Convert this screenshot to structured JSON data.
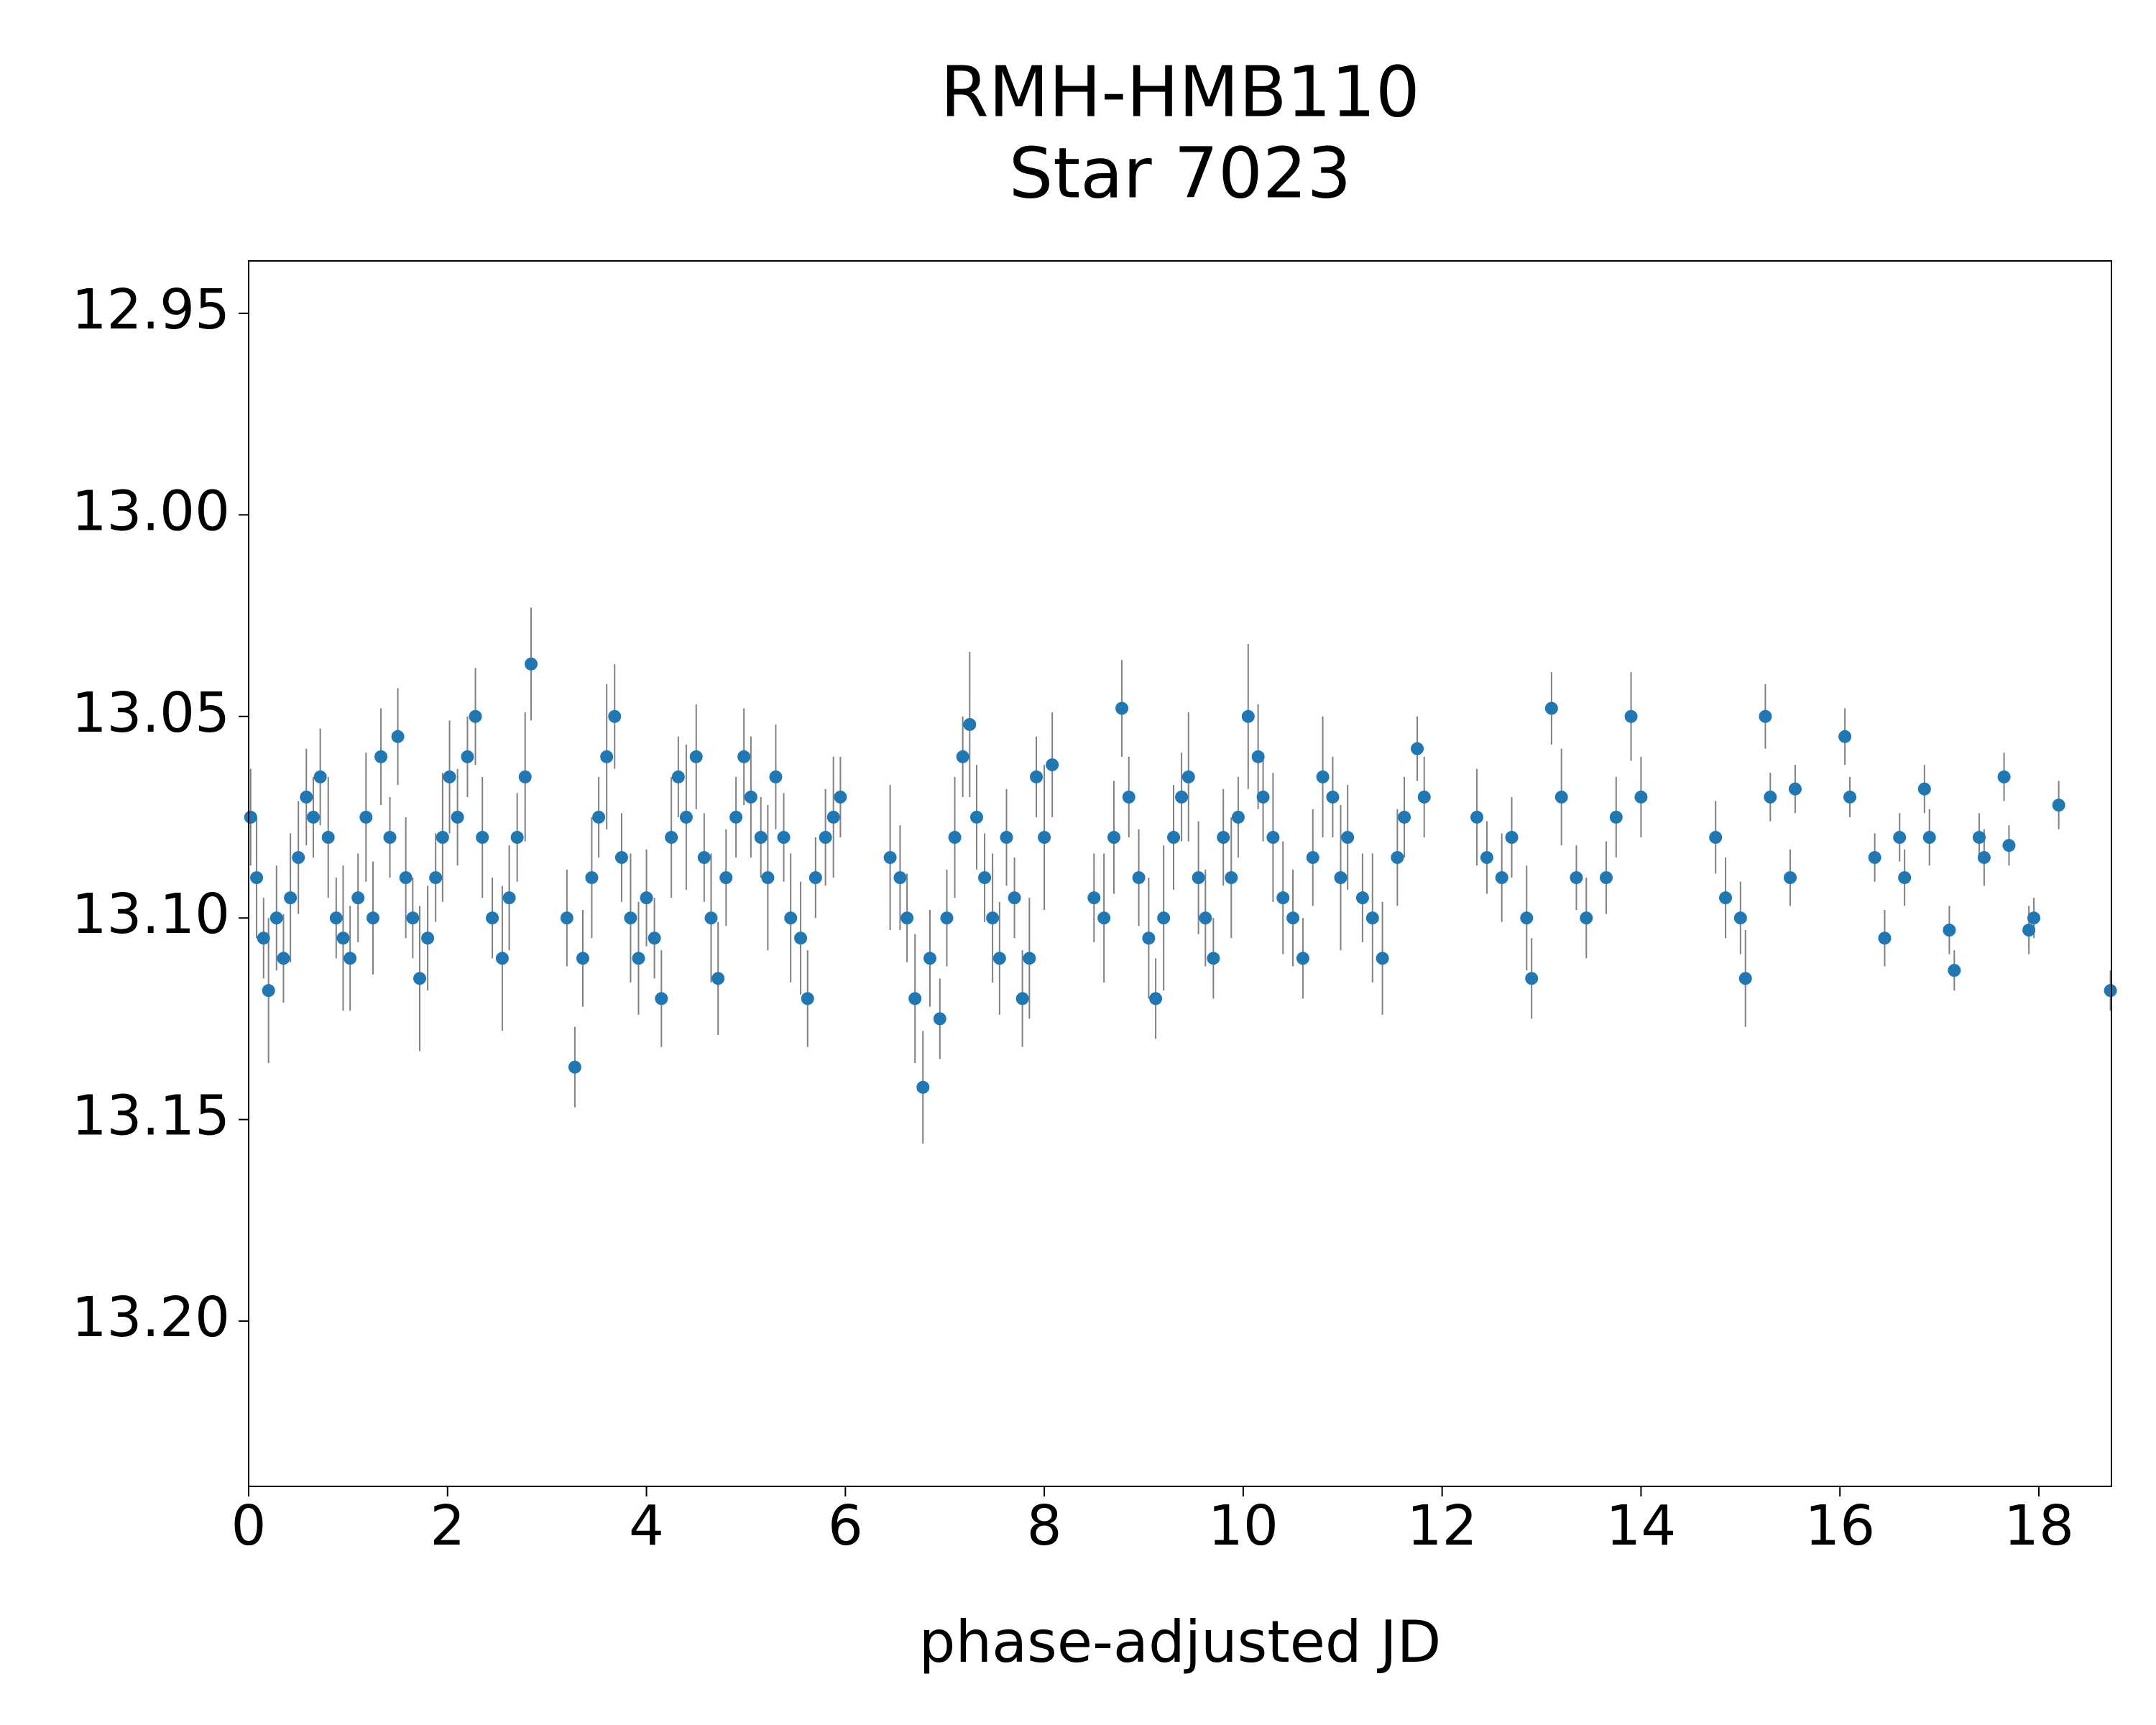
{
  "chart_data": {
    "type": "errorbar-scatter",
    "title": "RMH-HMB110",
    "subtitle": "Star 7023",
    "xlabel": "phase-adjusted JD",
    "color": "#1f77b4",
    "error_color": "#808080",
    "xlim": [
      0,
      18.73
    ],
    "ylim": [
      13.241,
      12.937
    ],
    "xticks": [
      0,
      2,
      4,
      6,
      8,
      10,
      12,
      14,
      16,
      18
    ],
    "yticks": [
      12.95,
      {
        "value": 13,
        "label": "13.00"
      },
      13.05,
      {
        "value": 13.1,
        "label": "13.10"
      },
      13.15,
      {
        "value": 13.2,
        "label": "13.20"
      }
    ],
    "x": [
      0.02,
      0.08,
      0.15,
      0.2,
      0.28,
      0.35,
      0.42,
      0.5,
      0.58,
      0.65,
      0.72,
      0.8,
      0.88,
      0.95,
      1.02,
      1.1,
      1.18,
      1.25,
      1.33,
      1.42,
      1.5,
      1.58,
      1.65,
      1.72,
      1.8,
      1.88,
      1.95,
      2.02,
      2.1,
      2.2,
      2.28,
      2.35,
      2.45,
      2.55,
      2.62,
      2.7,
      2.78,
      2.84,
      3.2,
      3.28,
      3.36,
      3.45,
      3.52,
      3.6,
      3.68,
      3.75,
      3.84,
      3.92,
      4.0,
      4.08,
      4.15,
      4.25,
      4.32,
      4.4,
      4.5,
      4.58,
      4.65,
      4.72,
      4.8,
      4.9,
      4.98,
      5.05,
      5.15,
      5.22,
      5.3,
      5.38,
      5.45,
      5.55,
      5.62,
      5.7,
      5.8,
      5.88,
      5.95,
      6.45,
      6.55,
      6.62,
      6.7,
      6.78,
      6.85,
      6.95,
      7.02,
      7.1,
      7.18,
      7.25,
      7.32,
      7.4,
      7.48,
      7.55,
      7.62,
      7.7,
      7.78,
      7.85,
      7.92,
      8.0,
      8.08,
      8.5,
      8.6,
      8.7,
      8.78,
      8.85,
      8.95,
      9.05,
      9.12,
      9.2,
      9.3,
      9.38,
      9.45,
      9.55,
      9.62,
      9.7,
      9.8,
      9.88,
      9.95,
      10.05,
      10.15,
      10.2,
      10.3,
      10.4,
      10.5,
      10.6,
      10.7,
      10.8,
      10.9,
      10.98,
      11.05,
      11.2,
      11.3,
      11.4,
      11.55,
      11.62,
      11.75,
      11.82,
      12.35,
      12.45,
      12.6,
      12.7,
      12.85,
      12.9,
      13.1,
      13.2,
      13.35,
      13.45,
      13.65,
      13.75,
      13.9,
      14.0,
      14.75,
      14.85,
      15.0,
      15.05,
      15.25,
      15.3,
      15.5,
      15.55,
      16.05,
      16.1,
      16.35,
      16.45,
      16.6,
      16.65,
      16.85,
      16.9,
      17.1,
      17.15,
      17.4,
      17.45,
      17.65,
      17.7,
      17.9,
      17.95,
      18.2,
      18.72
    ],
    "values": [
      13.075,
      13.09,
      13.105,
      13.118,
      13.1,
      13.11,
      13.095,
      13.085,
      13.07,
      13.075,
      13.065,
      13.08,
      13.1,
      13.105,
      13.11,
      13.095,
      13.075,
      13.1,
      13.06,
      13.08,
      13.055,
      13.09,
      13.1,
      13.115,
      13.105,
      13.09,
      13.08,
      13.065,
      13.075,
      13.06,
      13.05,
      13.08,
      13.1,
      13.11,
      13.095,
      13.08,
      13.065,
      13.037,
      13.1,
      13.137,
      13.11,
      13.09,
      13.075,
      13.06,
      13.05,
      13.085,
      13.1,
      13.11,
      13.095,
      13.105,
      13.12,
      13.08,
      13.065,
      13.075,
      13.06,
      13.085,
      13.1,
      13.115,
      13.09,
      13.075,
      13.06,
      13.07,
      13.08,
      13.09,
      13.065,
      13.08,
      13.1,
      13.105,
      13.12,
      13.09,
      13.08,
      13.075,
      13.07,
      13.085,
      13.09,
      13.1,
      13.12,
      13.142,
      13.11,
      13.125,
      13.1,
      13.08,
      13.06,
      13.052,
      13.075,
      13.09,
      13.1,
      13.11,
      13.08,
      13.095,
      13.12,
      13.11,
      13.065,
      13.08,
      13.062,
      13.095,
      13.1,
      13.08,
      13.048,
      13.07,
      13.09,
      13.105,
      13.12,
      13.1,
      13.08,
      13.07,
      13.065,
      13.09,
      13.1,
      13.11,
      13.08,
      13.09,
      13.075,
      13.05,
      13.06,
      13.07,
      13.08,
      13.095,
      13.1,
      13.11,
      13.085,
      13.065,
      13.07,
      13.09,
      13.08,
      13.095,
      13.1,
      13.11,
      13.085,
      13.075,
      13.058,
      13.07,
      13.075,
      13.085,
      13.09,
      13.08,
      13.1,
      13.115,
      13.048,
      13.07,
      13.09,
      13.1,
      13.09,
      13.075,
      13.05,
      13.07,
      13.08,
      13.095,
      13.1,
      13.115,
      13.05,
      13.07,
      13.09,
      13.068,
      13.055,
      13.07,
      13.085,
      13.105,
      13.08,
      13.09,
      13.068,
      13.08,
      13.103,
      13.113,
      13.08,
      13.085,
      13.065,
      13.082,
      13.103,
      13.1,
      13.072,
      13.118
    ],
    "errors": [
      0.012,
      0.015,
      0.01,
      0.018,
      0.013,
      0.011,
      0.016,
      0.014,
      0.012,
      0.01,
      0.012,
      0.015,
      0.01,
      0.018,
      0.013,
      0.011,
      0.016,
      0.014,
      0.012,
      0.01,
      0.012,
      0.015,
      0.01,
      0.018,
      0.013,
      0.011,
      0.016,
      0.014,
      0.012,
      0.01,
      0.012,
      0.015,
      0.01,
      0.018,
      0.013,
      0.011,
      0.016,
      0.014,
      0.012,
      0.01,
      0.012,
      0.015,
      0.01,
      0.018,
      0.013,
      0.011,
      0.016,
      0.014,
      0.012,
      0.01,
      0.012,
      0.015,
      0.01,
      0.018,
      0.013,
      0.011,
      0.016,
      0.014,
      0.012,
      0.01,
      0.012,
      0.015,
      0.01,
      0.018,
      0.013,
      0.011,
      0.016,
      0.014,
      0.012,
      0.01,
      0.012,
      0.015,
      0.01,
      0.018,
      0.013,
      0.011,
      0.016,
      0.014,
      0.012,
      0.01,
      0.012,
      0.015,
      0.01,
      0.018,
      0.013,
      0.011,
      0.016,
      0.014,
      0.012,
      0.01,
      0.012,
      0.015,
      0.01,
      0.018,
      0.013,
      0.011,
      0.016,
      0.014,
      0.012,
      0.01,
      0.012,
      0.015,
      0.01,
      0.018,
      0.013,
      0.011,
      0.016,
      0.014,
      0.012,
      0.01,
      0.012,
      0.015,
      0.01,
      0.018,
      0.013,
      0.011,
      0.016,
      0.014,
      0.012,
      0.01,
      0.012,
      0.015,
      0.01,
      0.018,
      0.013,
      0.011,
      0.016,
      0.014,
      0.012,
      0.01,
      0.008,
      0.01,
      0.012,
      0.009,
      0.011,
      0.01,
      0.013,
      0.01,
      0.009,
      0.012,
      0.008,
      0.01,
      0.009,
      0.01,
      0.011,
      0.01,
      0.009,
      0.01,
      0.009,
      0.012,
      0.008,
      0.006,
      0.007,
      0.006,
      0.007,
      0.005,
      0.006,
      0.007,
      0.006,
      0.007,
      0.006,
      0.007,
      0.006,
      0.005,
      0.006,
      0.007,
      0.006,
      0.005,
      0.006,
      0.005,
      0.006,
      0.005
    ]
  }
}
